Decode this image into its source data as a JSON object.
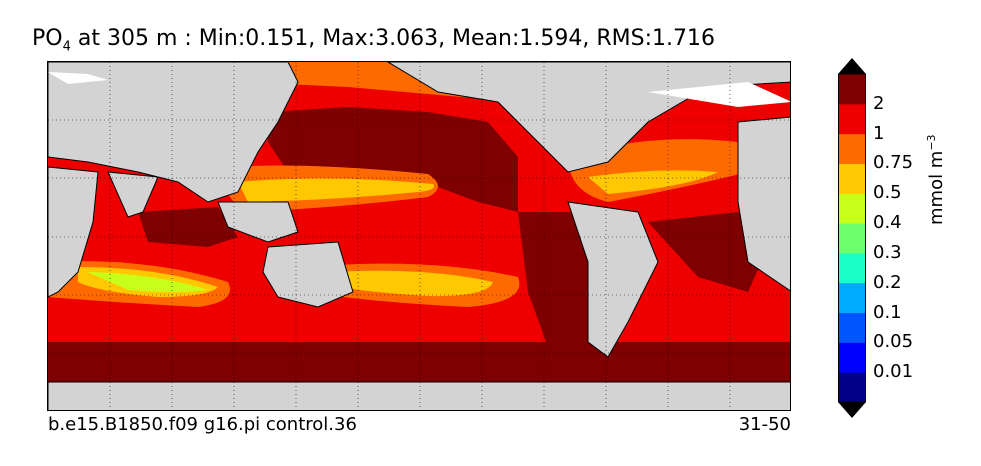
{
  "title": {
    "variable": "PO",
    "variable_subscript": "4",
    "rest": " at 305 m : Min:0.151, Max:3.063, Mean:1.594, RMS:1.716"
  },
  "footer": {
    "case_name": "b.e15.B1850.f09 g16.pi control.36",
    "years": "31-50"
  },
  "colorbar": {
    "units_main": "mmol m",
    "units_exponent": "−3",
    "levels": [
      "0.01",
      "0.05",
      "0.1",
      "0.2",
      "0.3",
      "0.4",
      "0.5",
      "0.75",
      "1",
      "2"
    ],
    "colors": [
      "#00008b",
      "#0000ff",
      "#0055ff",
      "#00aaff",
      "#1affc8",
      "#6bff6b",
      "#c8ff1a",
      "#ffc800",
      "#ff6a00",
      "#ee0000",
      "#7f0000"
    ],
    "extend": "both"
  },
  "map": {
    "land_color": "#d3d3d3",
    "ice_color": "#ffffff",
    "projection": "cylindrical",
    "grid": "dotted"
  }
}
